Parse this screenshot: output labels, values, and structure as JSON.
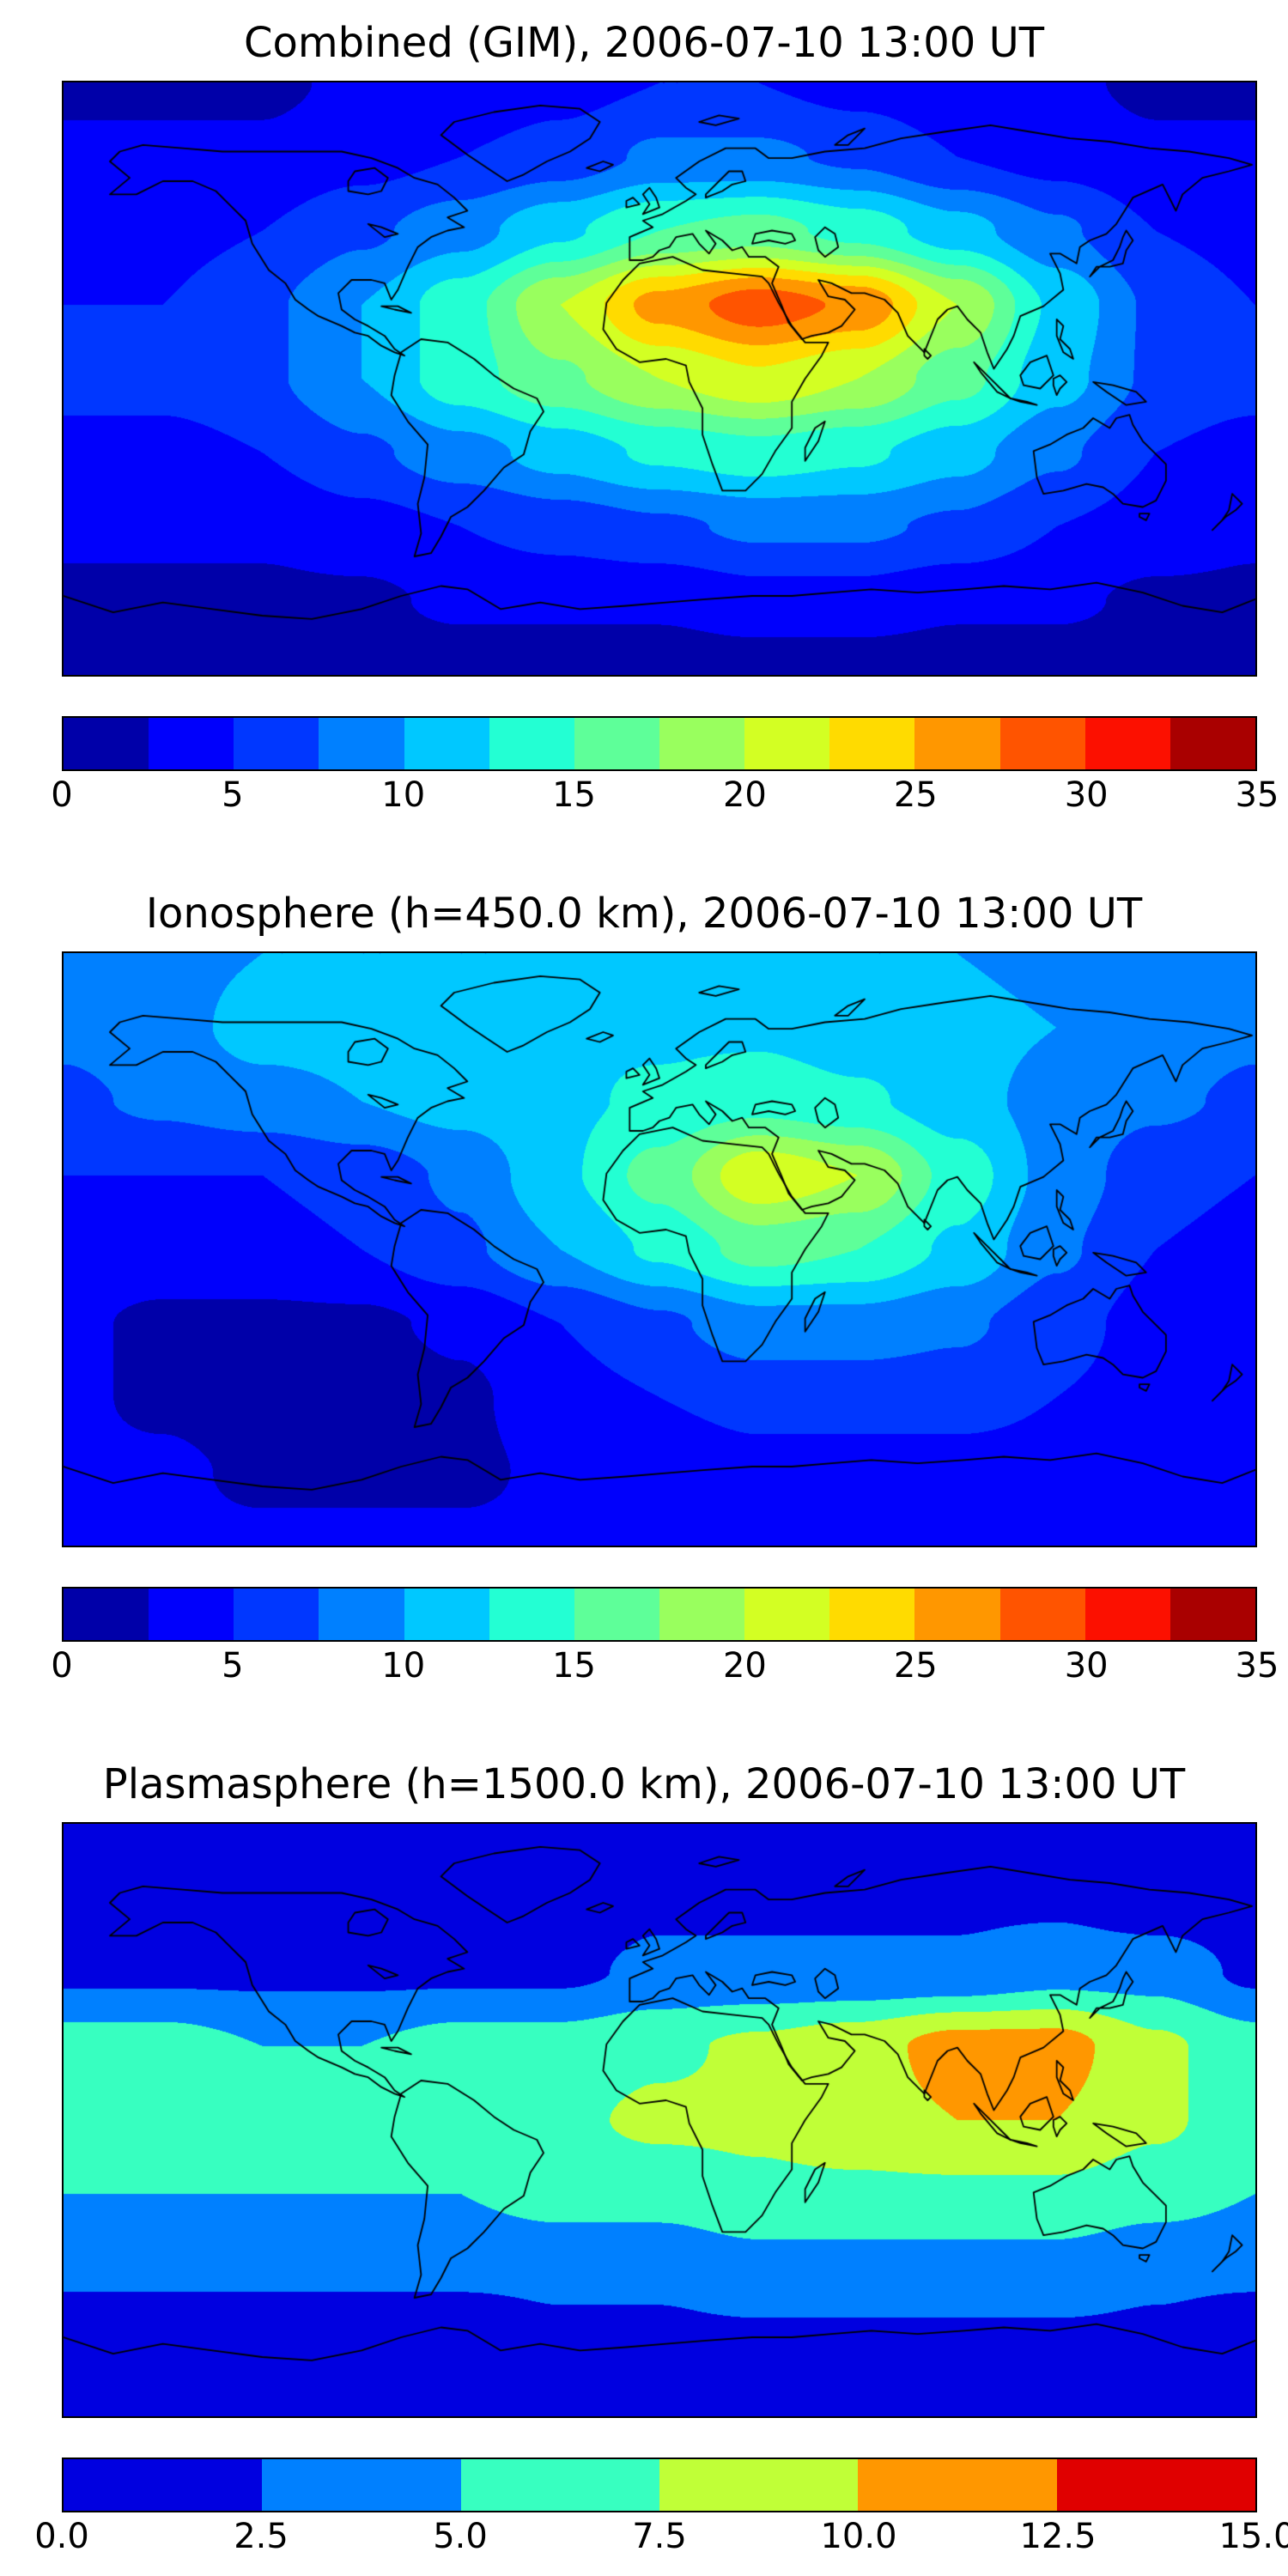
{
  "figure": {
    "background_color": "#ffffff",
    "coastline_color": "#000000"
  },
  "chart_data": [
    {
      "type": "heatmap",
      "title": "Combined (GIM), 2006-07-10 13:00 UT",
      "projection": "equirectangular",
      "colormap": "jet",
      "legend_position": "bottom-horizontal-colorbar",
      "lon_range": [
        -180,
        180
      ],
      "lat_range": [
        -90,
        90
      ],
      "lon": [
        -180,
        -150,
        -120,
        -90,
        -60,
        -30,
        0,
        30,
        60,
        90,
        120,
        150,
        180
      ],
      "lat": [
        90,
        67.5,
        45,
        22.5,
        0,
        -22.5,
        -45,
        -67.5,
        -90
      ],
      "values": [
        [
          2,
          2,
          2,
          3,
          3,
          4,
          5,
          5,
          4,
          3,
          3,
          2,
          2
        ],
        [
          3,
          3,
          3,
          4,
          5,
          6,
          8,
          8,
          7,
          5,
          4,
          3,
          3
        ],
        [
          4,
          4,
          5,
          7,
          9,
          12,
          15,
          16,
          14,
          11,
          8,
          5,
          4
        ],
        [
          5,
          5,
          7,
          10,
          14,
          20,
          26,
          29,
          27,
          20,
          12,
          7,
          5
        ],
        [
          6,
          6,
          7,
          10,
          14,
          17,
          20,
          22,
          20,
          16,
          11,
          7,
          6
        ],
        [
          4,
          4,
          5,
          7,
          9,
          11,
          13,
          14,
          13,
          11,
          8,
          5,
          4
        ],
        [
          3,
          3,
          3,
          4,
          5,
          6,
          7,
          8,
          8,
          7,
          5,
          4,
          3
        ],
        [
          2,
          2,
          2,
          2,
          3,
          3,
          3,
          4,
          4,
          3,
          3,
          2,
          2
        ],
        [
          1,
          1,
          1,
          1,
          1,
          1,
          1,
          1,
          1,
          1,
          1,
          1,
          1
        ]
      ],
      "levels": {
        "min": 0,
        "max": 35,
        "step": 2.5
      },
      "colors": [
        "#0000A9",
        "#0000FC",
        "#0037FF",
        "#0080FF",
        "#00C8FF",
        "#23FFD3",
        "#5EFF99",
        "#99FF5E",
        "#D3FF23",
        "#FFDB00",
        "#FF9700",
        "#FF5400",
        "#FC1000",
        "#A90000"
      ],
      "colorbar_ticks": [
        0,
        5,
        10,
        15,
        20,
        25,
        30,
        35
      ],
      "colorbar_tick_labels": [
        "0",
        "5",
        "10",
        "15",
        "20",
        "25",
        "30",
        "35"
      ]
    },
    {
      "type": "heatmap",
      "title": "Ionosphere (h=450.0 km), 2006-07-10 13:00 UT",
      "projection": "equirectangular",
      "colormap": "jet",
      "legend_position": "bottom-horizontal-colorbar",
      "lon_range": [
        -180,
        180
      ],
      "lat_range": [
        -90,
        90
      ],
      "lon": [
        -180,
        -150,
        -120,
        -90,
        -60,
        -30,
        0,
        30,
        60,
        90,
        120,
        150,
        180
      ],
      "lat": [
        90,
        67.5,
        45,
        22.5,
        0,
        -22.5,
        -45,
        -67.5,
        -90
      ],
      "values": [
        [
          8,
          9,
          10,
          10,
          10,
          10,
          11,
          11,
          10,
          10,
          9,
          8,
          8
        ],
        [
          8,
          9,
          11,
          11,
          11,
          12,
          12,
          12,
          11,
          11,
          10,
          9,
          8
        ],
        [
          7,
          8,
          9,
          10,
          11,
          12,
          13,
          14,
          13,
          11,
          9,
          8,
          7
        ],
        [
          5,
          5,
          5,
          6,
          8,
          12,
          16,
          22,
          20,
          14,
          9,
          6,
          5
        ],
        [
          4,
          4,
          4,
          5,
          7,
          10,
          13,
          16,
          15,
          12,
          8,
          5,
          4
        ],
        [
          3,
          2,
          2,
          2,
          3,
          5,
          7,
          9,
          9,
          8,
          6,
          4,
          3
        ],
        [
          3,
          2,
          1,
          1,
          2,
          4,
          5,
          6,
          6,
          6,
          5,
          4,
          3
        ],
        [
          3,
          3,
          2,
          2,
          2,
          3,
          3,
          4,
          4,
          4,
          4,
          3,
          3
        ],
        [
          3,
          3,
          3,
          3,
          3,
          3,
          3,
          3,
          3,
          3,
          3,
          3,
          3
        ]
      ],
      "levels": {
        "min": 0,
        "max": 35,
        "step": 2.5
      },
      "colors": [
        "#0000A9",
        "#0000FC",
        "#0037FF",
        "#0080FF",
        "#00C8FF",
        "#23FFD3",
        "#5EFF99",
        "#99FF5E",
        "#D3FF23",
        "#FFDB00",
        "#FF9700",
        "#FF5400",
        "#FC1000",
        "#A90000"
      ],
      "colorbar_ticks": [
        0,
        5,
        10,
        15,
        20,
        25,
        30,
        35
      ],
      "colorbar_tick_labels": [
        "0",
        "5",
        "10",
        "15",
        "20",
        "25",
        "30",
        "35"
      ]
    },
    {
      "type": "heatmap",
      "title": "Plasmasphere (h=1500.0 km), 2006-07-10 13:00 UT",
      "projection": "equirectangular",
      "colormap": "jet",
      "legend_position": "bottom-horizontal-colorbar",
      "lon_range": [
        -180,
        180
      ],
      "lat_range": [
        -90,
        90
      ],
      "lon": [
        -180,
        -150,
        -120,
        -90,
        -60,
        -30,
        0,
        30,
        60,
        90,
        120,
        150,
        180
      ],
      "lat": [
        90,
        67.5,
        45,
        22.5,
        0,
        -22.5,
        -45,
        -67.5,
        -90
      ],
      "values": [
        [
          1,
          1,
          1,
          1,
          1,
          1,
          1,
          1,
          1,
          1,
          1,
          1,
          1
        ],
        [
          1,
          1,
          1,
          1,
          1,
          1,
          2,
          2,
          2,
          2,
          2,
          1,
          1
        ],
        [
          2,
          2,
          2,
          2,
          2,
          2,
          3,
          3,
          3,
          3,
          4,
          4,
          2
        ],
        [
          6,
          6,
          5,
          5,
          6,
          6,
          7,
          8,
          9,
          11,
          11,
          8,
          6
        ],
        [
          6,
          6,
          6,
          6,
          6,
          7,
          8,
          8,
          9,
          10,
          10,
          8,
          6
        ],
        [
          5,
          5,
          5,
          5,
          5,
          6,
          6,
          7,
          7,
          7,
          7,
          6,
          5
        ],
        [
          3,
          3,
          3,
          3,
          3,
          3,
          3,
          4,
          4,
          4,
          4,
          3,
          3
        ],
        [
          1,
          1,
          1,
          1,
          1,
          2,
          2,
          2,
          2,
          2,
          2,
          2,
          1
        ],
        [
          1,
          1,
          1,
          1,
          1,
          1,
          1,
          1,
          1,
          1,
          1,
          1,
          1
        ]
      ],
      "levels": {
        "min": 0,
        "max": 15,
        "step": 2.5
      },
      "colors": [
        "#0000E0",
        "#0080FF",
        "#37FFC0",
        "#C0FF37",
        "#FF9700",
        "#E00000"
      ],
      "colorbar_ticks": [
        0,
        2.5,
        5,
        7.5,
        10,
        12.5,
        15
      ],
      "colorbar_tick_labels": [
        "0.0",
        "2.5",
        "5.0",
        "7.5",
        "10.0",
        "12.5",
        "15.0"
      ]
    }
  ]
}
